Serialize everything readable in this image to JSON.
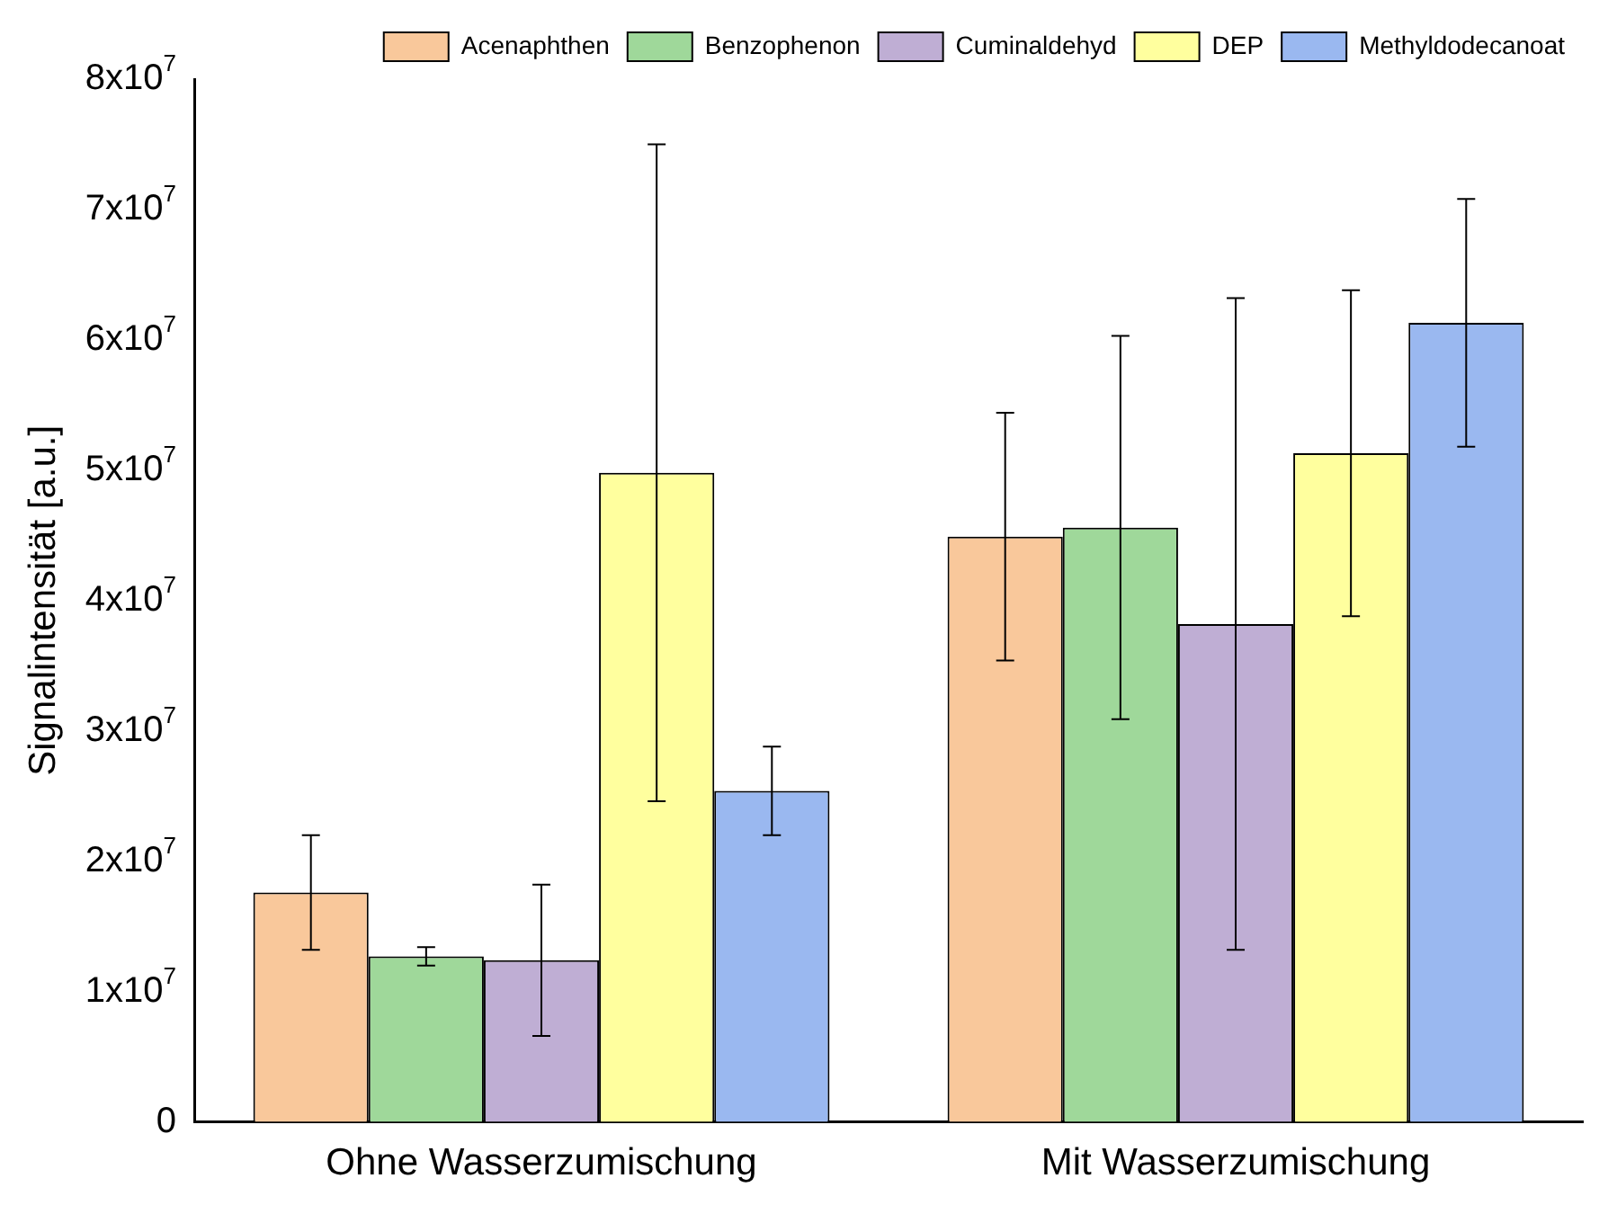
{
  "chart_data": {
    "type": "bar",
    "ylabel": "Signalintensität [a.u.]",
    "categories": [
      "Ohne Wasserzumischung",
      "Mit Wasserzumischung"
    ],
    "series": [
      {
        "name": "Acenaphthen",
        "color": "#f9c89b",
        "values": [
          17600000,
          44900000
        ],
        "errors": [
          4400000,
          9500000
        ]
      },
      {
        "name": "Benzophenon",
        "color": "#9fd89a",
        "values": [
          12700000,
          45600000
        ],
        "errors": [
          700000,
          14700000
        ]
      },
      {
        "name": "Cuminaldehyd",
        "color": "#bfaed4",
        "values": [
          12400000,
          38200000
        ],
        "errors": [
          5800000,
          25000000
        ]
      },
      {
        "name": "DEP",
        "color": "#ffff9e",
        "values": [
          49800000,
          51300000
        ],
        "errors": [
          25200000,
          12500000
        ]
      },
      {
        "name": "Methyldodecanoat",
        "color": "#9ab8f0",
        "values": [
          25400000,
          61300000
        ],
        "errors": [
          3400000,
          9500000
        ]
      }
    ],
    "ylim": [
      0,
      80000000
    ],
    "yticks": [
      0,
      {
        "value": 10000000,
        "label": "1x10$^{7}$"
      },
      {
        "value": 20000000,
        "label": "2x10$^{7}$"
      },
      {
        "value": 30000000,
        "label": "3x10$^{7}$"
      },
      {
        "value": 40000000,
        "label": "4x10$^{7}$"
      },
      {
        "value": 50000000,
        "label": "5x10$^{7}$"
      },
      {
        "value": 60000000,
        "label": "6x10$^{7}$"
      },
      {
        "value": 70000000,
        "label": "7x10$^{7}$"
      },
      {
        "value": 80000000,
        "label": "8x10$^{7}$"
      }
    ],
    "grid": false,
    "legend": "top"
  }
}
